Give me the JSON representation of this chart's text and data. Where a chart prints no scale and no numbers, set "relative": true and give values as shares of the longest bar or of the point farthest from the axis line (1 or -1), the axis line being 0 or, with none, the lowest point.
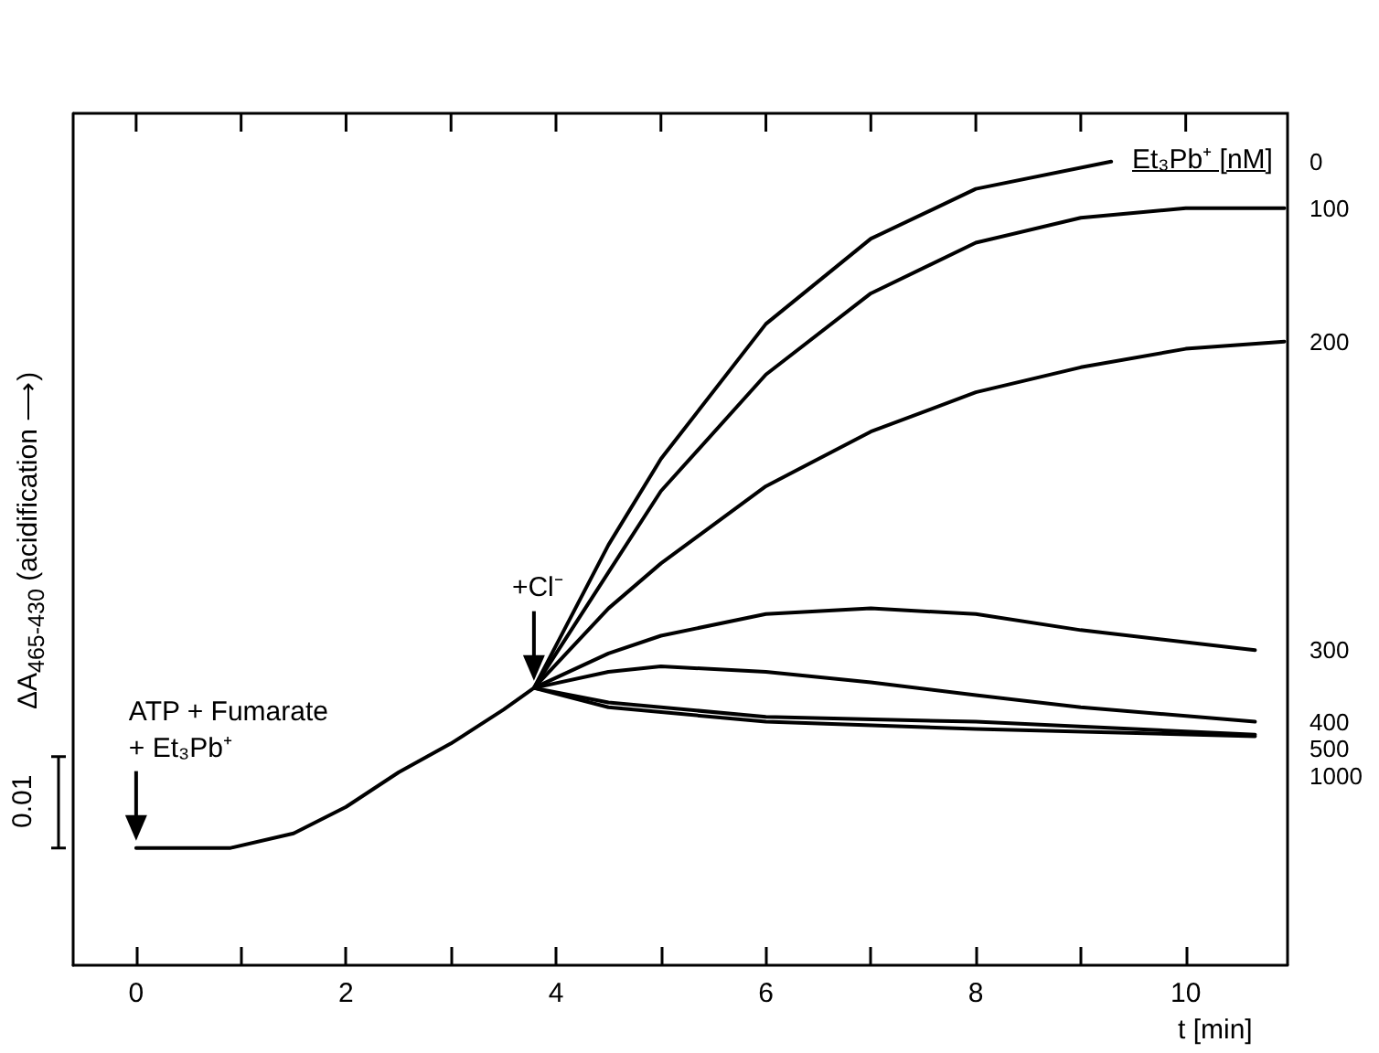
{
  "chart_data": {
    "type": "line",
    "relative": true,
    "xlabel": "t [min]",
    "ylabel": "ΔA$_{465-430}$ (acidification ⟶)",
    "legend_title": "Et₃Pb⁺ [nM]",
    "xlim": [
      -0.6,
      10.97
    ],
    "xticks": [
      0,
      {
        "value": 1,
        "label": null
      },
      2,
      {
        "value": 3,
        "label": null
      },
      4,
      {
        "value": 5,
        "label": null
      },
      6,
      {
        "value": 7,
        "label": null
      },
      8,
      {
        "value": 9,
        "label": null
      },
      10
    ],
    "marker": "none",
    "line_style": "solid",
    "grid": false,
    "legend": false,
    "annotations": [
      "ATP + Fumarate + Et₃Pb⁺",
      "+Cl⁻",
      "0.01"
    ],
    "series": [
      {
        "name": "0",
        "color": "#000000",
        "x": [
          0,
          0.9,
          1.5,
          2,
          2.5,
          3,
          3.5,
          3.79,
          4.5,
          5,
          6,
          7,
          8,
          9.29
        ],
        "values": [
          0.146,
          0.146,
          0.164,
          0.197,
          0.24,
          0.276,
          0.318,
          0.345,
          0.523,
          0.63,
          0.798,
          0.904,
          0.966,
          1
        ]
      },
      {
        "name": "100",
        "color": "#000000",
        "x": [
          3.79,
          4.5,
          5,
          6,
          7,
          8,
          9,
          10,
          10.94
        ],
        "values": [
          0.345,
          0.489,
          0.59,
          0.735,
          0.836,
          0.899,
          0.93,
          0.942,
          0.942
        ]
      },
      {
        "name": "200",
        "color": "#000000",
        "x": [
          3.79,
          4.5,
          5,
          6,
          7,
          8,
          9,
          10,
          10.94
        ],
        "values": [
          0.345,
          0.444,
          0.5,
          0.596,
          0.664,
          0.713,
          0.744,
          0.767,
          0.776
        ]
      },
      {
        "name": "300",
        "color": "#000000",
        "x": [
          3.79,
          4.5,
          5,
          6,
          7,
          8,
          9,
          10.66
        ],
        "values": [
          0.345,
          0.388,
          0.41,
          0.437,
          0.444,
          0.437,
          0.417,
          0.392
        ]
      },
      {
        "name": "400",
        "color": "#000000",
        "x": [
          3.79,
          4.5,
          5,
          6,
          7,
          8,
          9,
          10.66
        ],
        "values": [
          0.345,
          0.365,
          0.372,
          0.365,
          0.352,
          0.336,
          0.321,
          0.303
        ]
      },
      {
        "name": "500",
        "color": "#000000",
        "x": [
          3.79,
          4.5,
          6,
          8,
          10.66
        ],
        "values": [
          0.345,
          0.327,
          0.309,
          0.303,
          0.287
        ]
      },
      {
        "name": "1000",
        "color": "#000000",
        "x": [
          3.79,
          4.5,
          6,
          8,
          10.66
        ],
        "values": [
          0.345,
          0.321,
          0.303,
          0.294,
          0.285
        ]
      }
    ]
  }
}
